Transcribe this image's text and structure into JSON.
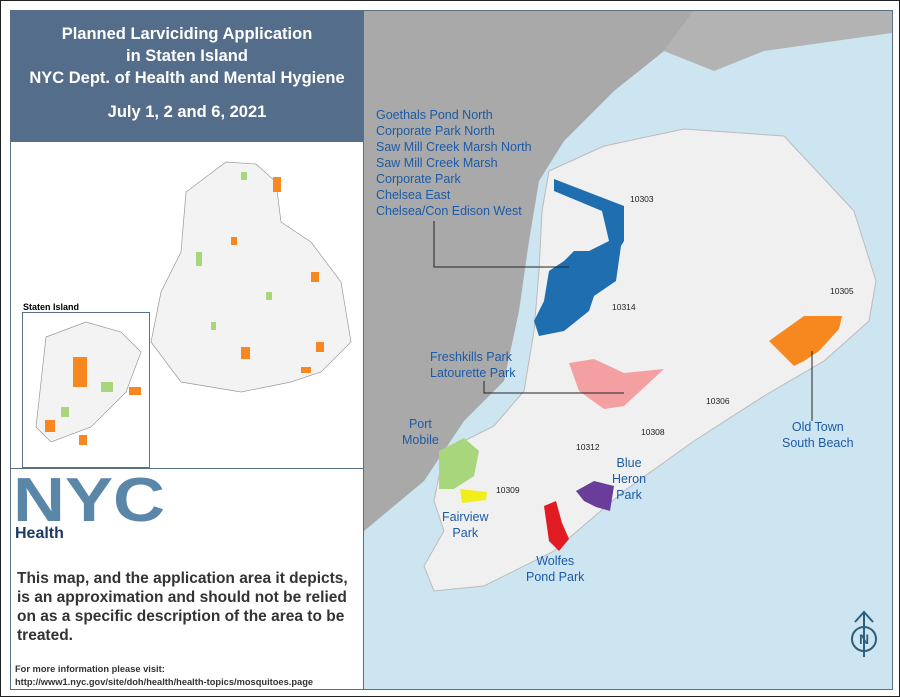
{
  "title": {
    "line1": "Planned Larviciding Application",
    "line2": "in Staten Island",
    "line3": "NYC Dept. of Health and Mental Hygiene",
    "dates": "July 1, 2 and 6, 2021"
  },
  "inset": {
    "label": "Staten Island"
  },
  "logo": {
    "text": "NYC",
    "sub": "Health"
  },
  "disclaimer": "This map, and the application area it depicts, is an approximation and should not be relied on as a specific description of the area to be treated.",
  "more_info": {
    "label": "For more information please visit:",
    "url": "http://www1.nyc.gov/site/doh/health/health-topics/mosquitoes.page"
  },
  "areas": {
    "north_group": [
      "Goethals Pond North",
      "Corporate Park North",
      "Saw Mill Creek Marsh North",
      "Saw Mill Creek Marsh",
      "Corporate Park",
      "Chelsea East",
      "Chelsea/Con Edison West"
    ],
    "freshkills": [
      "Freshkills Park",
      "Latourette Park"
    ],
    "port_mobile": [
      "Port",
      "Mobile"
    ],
    "fairview": [
      "Fairview",
      "Park"
    ],
    "blue_heron": [
      "Blue",
      "Heron",
      "Park"
    ],
    "wolfes": [
      "Wolfes",
      "Pond Park"
    ],
    "old_town": [
      "Old Town",
      "South Beach"
    ]
  },
  "zips": [
    "10303",
    "10314",
    "10305",
    "10306",
    "10308",
    "10312",
    "10309"
  ],
  "colors": {
    "header": "#536d8a",
    "north": "#1f6fb0",
    "freshkills": "#f4a0a3",
    "port_mobile": "#a8d67c",
    "fairview": "#f2ee1a",
    "blue_heron": "#6a3d9a",
    "wolfes": "#e11b22",
    "old_town": "#f7871f",
    "water": "#cde5f1",
    "land": "#f0f0f0",
    "other_land": "#a9a9a9"
  },
  "icons": [
    "north-arrow-icon"
  ],
  "north_letter": "N"
}
